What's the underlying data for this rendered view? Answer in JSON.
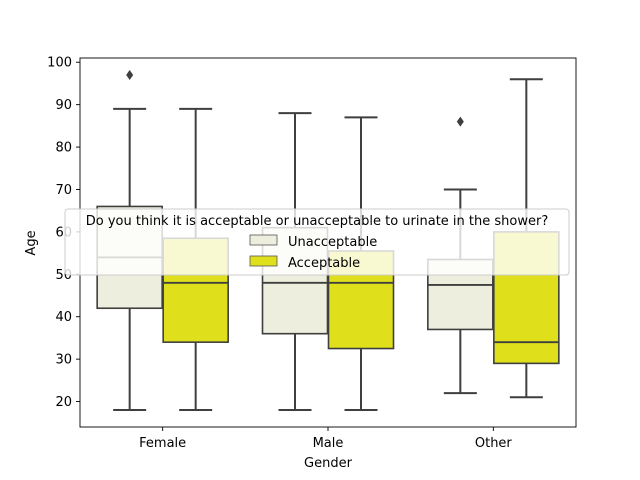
{
  "chart_data": {
    "type": "box",
    "title": "",
    "xlabel": "Gender",
    "ylabel": "Age",
    "categories": [
      "Female",
      "Male",
      "Other"
    ],
    "ylim": [
      14,
      101
    ],
    "yticks": [
      20,
      30,
      40,
      50,
      60,
      70,
      80,
      90,
      100
    ],
    "grid": false,
    "legend": {
      "title": "Do you think it is acceptable or unacceptable to urinate in the shower?",
      "placement": "center"
    },
    "series": [
      {
        "name": "Unacceptable",
        "color": "#edeedd",
        "boxes": [
          {
            "min": 18,
            "q1": 42,
            "median": 54,
            "q3": 66,
            "max": 89,
            "outliers": [
              97
            ]
          },
          {
            "min": 18,
            "q1": 36,
            "median": 48,
            "q3": 61,
            "max": 88,
            "outliers": []
          },
          {
            "min": 22,
            "q1": 37,
            "median": 47.5,
            "q3": 53.5,
            "max": 70,
            "outliers": [
              86
            ]
          }
        ]
      },
      {
        "name": "Acceptable",
        "color": "#dfe01b",
        "boxes": [
          {
            "min": 18,
            "q1": 34,
            "median": 48,
            "q3": 58.5,
            "max": 89,
            "outliers": []
          },
          {
            "min": 18,
            "q1": 32.5,
            "median": 48,
            "q3": 55.5,
            "max": 87,
            "outliers": []
          },
          {
            "min": 21,
            "q1": 29,
            "median": 34,
            "q3": 60,
            "max": 96,
            "outliers": []
          }
        ]
      }
    ]
  }
}
